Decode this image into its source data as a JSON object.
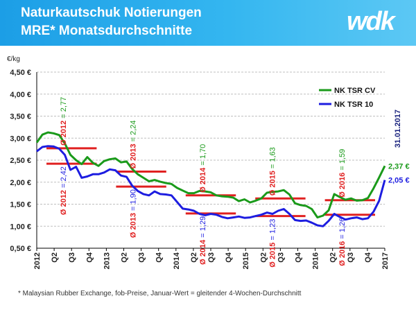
{
  "header": {
    "title_line1": "Naturkautschuk Notierungen",
    "title_line2": "MRE* Monatsdurchschnitte",
    "logo_text": "wdk",
    "background_color": "#1ea0e6"
  },
  "footnote": "* Malaysian Rubber Exchange, fob-Preise, Januar-Wert = gleitender 4-Wochen-Durchschnitt",
  "chart_data": {
    "type": "line",
    "ylabel": "€/kg",
    "ylim": [
      0.5,
      4.5
    ],
    "yticks": [
      "0,50 €",
      "1,00 €",
      "1,50 €",
      "2,00 €",
      "2,50 €",
      "3,00 €",
      "3,50 €",
      "4,00 €",
      "4,50 €"
    ],
    "xticks": [
      "2012",
      "Q2",
      "Q3",
      "Q4",
      "2013",
      "Q2",
      "Q3",
      "Q4",
      "2014",
      "Q2",
      "Q3",
      "Q4",
      "2015",
      "Q2",
      "Q3",
      "Q4",
      "2016",
      "Q2",
      "Q3",
      "Q4",
      "2017"
    ],
    "date_label": "31.01.2017",
    "legend_position": "top-right",
    "grid": true,
    "series": [
      {
        "name": "NK TSR CV",
        "color": "#1a9a1a",
        "end_label": "2,37 €",
        "values": [
          2.9,
          3.08,
          3.13,
          3.11,
          3.07,
          2.88,
          2.62,
          2.5,
          2.41,
          2.57,
          2.44,
          2.37,
          2.48,
          2.52,
          2.54,
          2.45,
          2.47,
          2.3,
          2.18,
          2.1,
          2.02,
          2.05,
          2.01,
          1.98,
          1.96,
          1.87,
          1.81,
          1.75,
          1.75,
          1.8,
          1.79,
          1.77,
          1.7,
          1.68,
          1.67,
          1.65,
          1.57,
          1.61,
          1.54,
          1.58,
          1.63,
          1.76,
          1.78,
          1.79,
          1.82,
          1.72,
          1.52,
          1.48,
          1.46,
          1.39,
          1.2,
          1.24,
          1.36,
          1.73,
          1.66,
          1.6,
          1.63,
          1.58,
          1.59,
          1.64,
          1.86,
          2.11,
          2.37
        ]
      },
      {
        "name": "NK TSR 10",
        "color": "#1d1de0",
        "end_label": "2,05 €",
        "values": [
          2.7,
          2.8,
          2.82,
          2.81,
          2.76,
          2.62,
          2.28,
          2.35,
          2.1,
          2.13,
          2.18,
          2.18,
          2.22,
          2.29,
          2.27,
          2.15,
          2.12,
          1.92,
          1.8,
          1.73,
          1.7,
          1.79,
          1.73,
          1.72,
          1.7,
          1.55,
          1.4,
          1.38,
          1.35,
          1.28,
          1.25,
          1.28,
          1.26,
          1.21,
          1.18,
          1.2,
          1.22,
          1.19,
          1.2,
          1.23,
          1.26,
          1.31,
          1.28,
          1.35,
          1.39,
          1.28,
          1.14,
          1.12,
          1.13,
          1.08,
          1.02,
          1.0,
          1.12,
          1.28,
          1.21,
          1.15,
          1.18,
          1.2,
          1.16,
          1.18,
          1.33,
          1.58,
          2.05
        ]
      }
    ],
    "averages": [
      {
        "year_label": "Ø 2012",
        "cv": 2.77,
        "tsr10": 2.42,
        "cv_text": "= 2,77",
        "tsr_text": "= 2,42"
      },
      {
        "year_label": "Ø 2013",
        "cv": 2.24,
        "tsr10": 1.9,
        "cv_text": "= 2,24",
        "tsr_text": "= 1,90"
      },
      {
        "year_label": "Ø 2014",
        "cv": 1.7,
        "tsr10": 1.29,
        "cv_text": "= 1,70",
        "tsr_text": "= 1,29"
      },
      {
        "year_label": "Ø 2015",
        "cv": 1.63,
        "tsr10": 1.23,
        "cv_text": "= 1,63",
        "tsr_text": "= 1,23"
      },
      {
        "year_label": "Ø 2016",
        "cv": 1.59,
        "tsr10": 1.26,
        "cv_text": "= 1,59",
        "tsr_text": "= 1,26"
      }
    ],
    "average_line_color": "#e02020"
  }
}
